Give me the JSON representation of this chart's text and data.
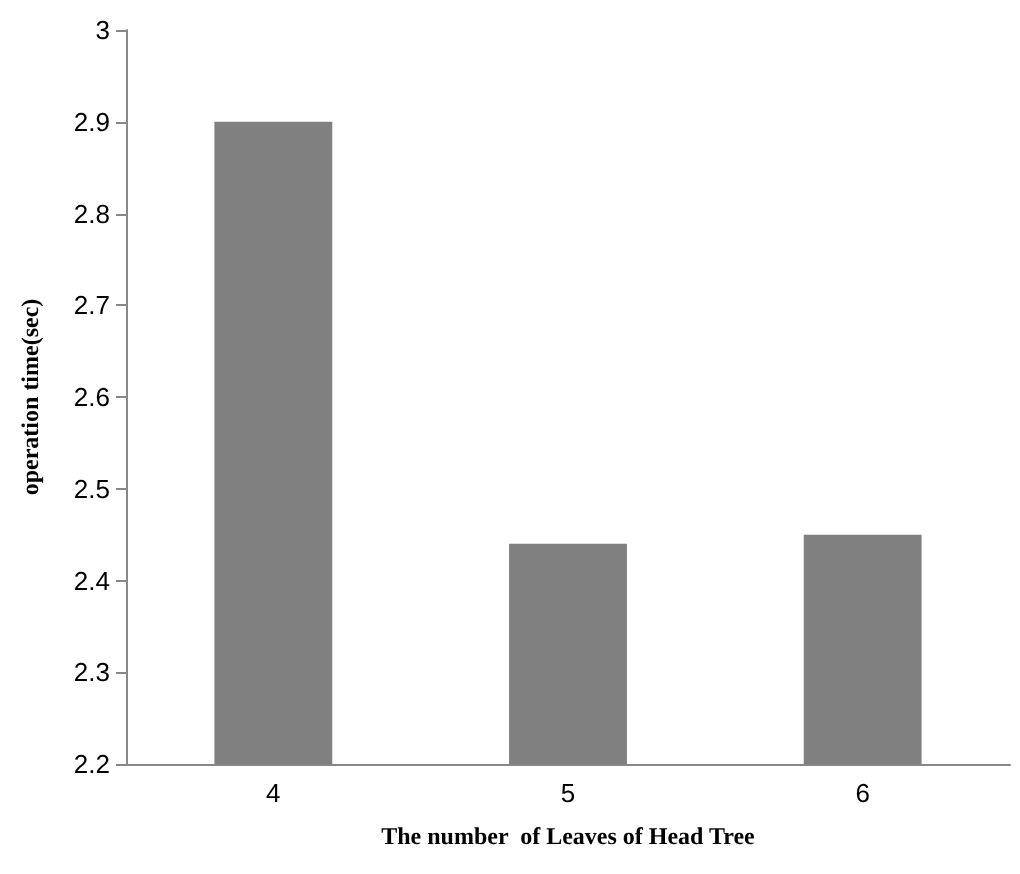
{
  "chart_data": {
    "type": "bar",
    "xlabel": "The number  of Leaves of Head Tree",
    "ylabel": "operation time(sec)",
    "categories": [
      "4",
      "5",
      "6"
    ],
    "values": [
      2.9,
      2.44,
      2.45
    ],
    "color": "#808080",
    "ylim": [
      2.2,
      3
    ],
    "yticks": [
      2.2,
      2.3,
      2.4,
      2.5,
      2.6,
      2.7,
      2.8,
      2.9,
      3
    ],
    "grid": false
  }
}
